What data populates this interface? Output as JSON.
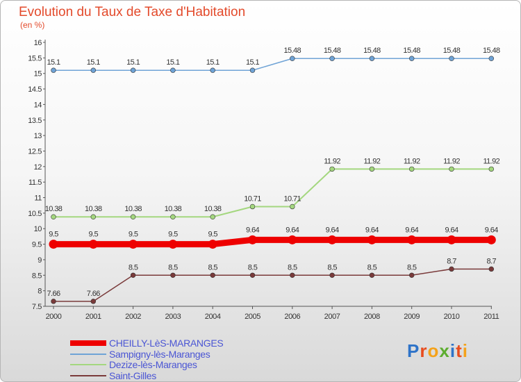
{
  "title": "Evolution du Taux de Taxe d'Habitation",
  "unit": "(en %)",
  "logo": {
    "text": "Proxiti",
    "colors": [
      "#2e73c8",
      "#e84c1e",
      "#f4a21a",
      "#5cad2f",
      "#2e73c8",
      "#e84c1e",
      "#f4a21a"
    ]
  },
  "chart_data": {
    "type": "line",
    "title": "Evolution du Taux de Taxe d'Habitation",
    "ylabel": "(en %)",
    "xlabel": "",
    "x": [
      "2000",
      "2001",
      "2002",
      "2003",
      "2004",
      "2005",
      "2006",
      "2007",
      "2008",
      "2009",
      "2010",
      "2011"
    ],
    "ylim": [
      7.5,
      16
    ],
    "yticks": [
      "7.5",
      "8",
      "8.5",
      "9",
      "9.5",
      "10",
      "10.5",
      "11",
      "11.5",
      "12",
      "12.5",
      "13",
      "13.5",
      "14",
      "14.5",
      "15",
      "15.5",
      "16"
    ],
    "grid": false,
    "legend_position": "bottom-left",
    "series": [
      {
        "name": "CHEILLY-LèS-MARANGES",
        "color": "#ee0000",
        "width": 9,
        "values": [
          9.5,
          9.5,
          9.5,
          9.5,
          9.5,
          9.64,
          9.64,
          9.64,
          9.64,
          9.64,
          9.64,
          9.64
        ],
        "labels": [
          "9.5",
          "9.5",
          "9.5",
          "9.5",
          "9.5",
          "9.64",
          "9.64",
          "9.64",
          "9.64",
          "9.64",
          "9.64",
          "9.64"
        ]
      },
      {
        "name": "Sampigny-lès-Maranges",
        "color": "#6fa3d6",
        "width": 1.5,
        "values": [
          15.1,
          15.1,
          15.1,
          15.1,
          15.1,
          15.1,
          15.48,
          15.48,
          15.48,
          15.48,
          15.48,
          15.48
        ],
        "labels": [
          "15.1",
          "15.1",
          "15.1",
          "15.1",
          "15.1",
          "15.1",
          "15.48",
          "15.48",
          "15.48",
          "15.48",
          "15.48",
          "15.48"
        ]
      },
      {
        "name": "Dezize-lès-Maranges",
        "color": "#a4d77f",
        "width": 2,
        "values": [
          10.38,
          10.38,
          10.38,
          10.38,
          10.38,
          10.71,
          10.71,
          11.92,
          11.92,
          11.92,
          11.92,
          11.92
        ],
        "labels": [
          "10.38",
          "10.38",
          "10.38",
          "10.38",
          "10.38",
          "10.71",
          "10.71",
          "11.92",
          "11.92",
          "11.92",
          "11.92",
          "11.92"
        ]
      },
      {
        "name": "Saint-Gilles",
        "color": "#7a3a3a",
        "width": 1.5,
        "values": [
          7.66,
          7.66,
          8.5,
          8.5,
          8.5,
          8.5,
          8.5,
          8.5,
          8.5,
          8.5,
          8.7,
          8.7
        ],
        "labels": [
          "7.66",
          "7.66",
          "8.5",
          "8.5",
          "8.5",
          "8.5",
          "8.5",
          "8.5",
          "8.5",
          "8.5",
          "8.7",
          "8.7"
        ]
      }
    ]
  }
}
